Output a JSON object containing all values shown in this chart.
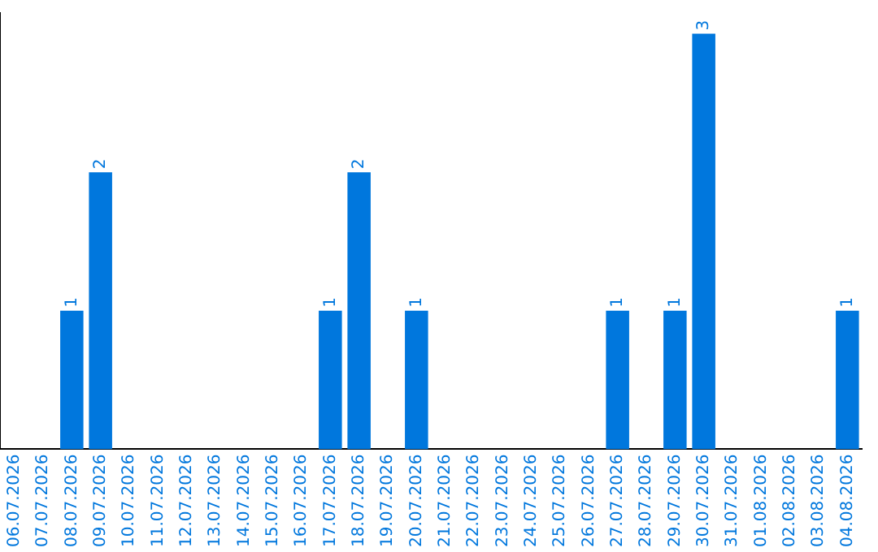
{
  "chart_data": {
    "type": "bar",
    "categories": [
      "06.07.2026",
      "07.07.2026",
      "08.07.2026",
      "09.07.2026",
      "10.07.2026",
      "11.07.2026",
      "12.07.2026",
      "13.07.2026",
      "14.07.2026",
      "15.07.2026",
      "16.07.2026",
      "17.07.2026",
      "18.07.2026",
      "19.07.2026",
      "20.07.2026",
      "21.07.2026",
      "22.07.2026",
      "23.07.2026",
      "24.07.2026",
      "25.07.2026",
      "26.07.2026",
      "27.07.2026",
      "28.07.2026",
      "29.07.2026",
      "30.07.2026",
      "31.07.2026",
      "01.08.2026",
      "02.08.2026",
      "03.08.2026",
      "04.08.2026"
    ],
    "values": [
      0,
      0,
      1,
      2,
      0,
      0,
      0,
      0,
      0,
      0,
      0,
      1,
      2,
      0,
      1,
      0,
      0,
      0,
      0,
      0,
      0,
      1,
      0,
      1,
      3,
      0,
      0,
      0,
      0,
      1
    ],
    "value_labels": [
      null,
      null,
      "1",
      "2",
      null,
      null,
      null,
      null,
      null,
      null,
      null,
      "1",
      "2",
      null,
      "1",
      null,
      null,
      null,
      null,
      null,
      null,
      "1",
      null,
      "1",
      "3",
      null,
      null,
      null,
      null,
      "1"
    ],
    "color": "#0077dd",
    "ylim": [
      0,
      3.15
    ],
    "tick_labels": "x",
    "grid": false,
    "legend": false
  }
}
